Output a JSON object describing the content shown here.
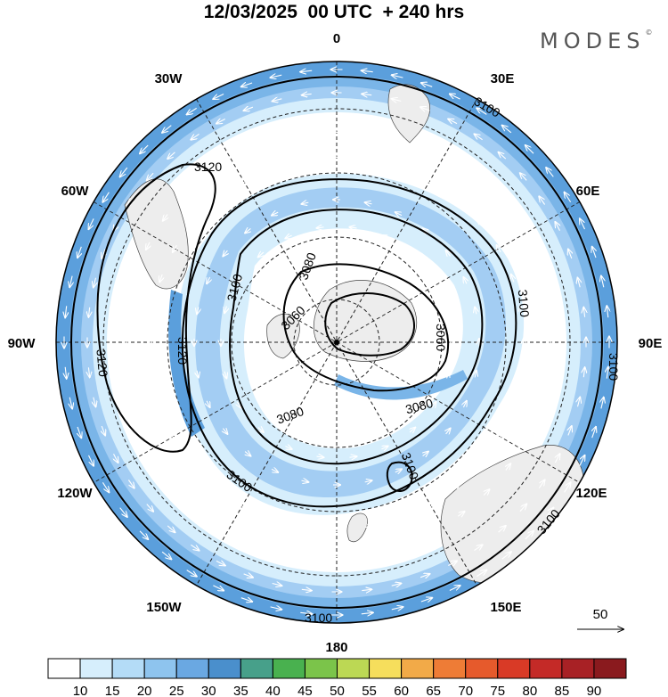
{
  "header": {
    "title": "12/03/2025  00 UTC  + 240 hrs",
    "brand": "MODES",
    "brand_mark": "©"
  },
  "map": {
    "projection": "south-polar-stereographic",
    "longitude_labels": [
      {
        "id": "0",
        "text": "0"
      },
      {
        "id": "30e",
        "text": "30E"
      },
      {
        "id": "60e",
        "text": "60E"
      },
      {
        "id": "90e",
        "text": "90E"
      },
      {
        "id": "120e",
        "text": "120E"
      },
      {
        "id": "150e",
        "text": "150E"
      },
      {
        "id": "180",
        "text": "180"
      },
      {
        "id": "150w",
        "text": "150W"
      },
      {
        "id": "120w",
        "text": "120W"
      },
      {
        "id": "90w",
        "text": "90W"
      },
      {
        "id": "60w",
        "text": "60W"
      },
      {
        "id": "30w",
        "text": "30W"
      }
    ],
    "contour_labels": [
      "3120",
      "3100",
      "3080",
      "3060"
    ],
    "reference_vector_label": "50"
  },
  "colorbar": {
    "ticks": [
      "10",
      "15",
      "20",
      "25",
      "30",
      "35",
      "40",
      "45",
      "50",
      "55",
      "60",
      "65",
      "70",
      "75",
      "80",
      "85",
      "90"
    ],
    "colors": [
      "#ffffff",
      "#d6eefc",
      "#b4dcf7",
      "#8ec4ee",
      "#6aa8e2",
      "#4a8fcc",
      "#47a08a",
      "#49b14f",
      "#7bc44a",
      "#bcd854",
      "#f6de5c",
      "#f2aa48",
      "#ee7c36",
      "#e65a2c",
      "#d93a26",
      "#c42a27",
      "#a82125",
      "#8a1a1e"
    ]
  }
}
